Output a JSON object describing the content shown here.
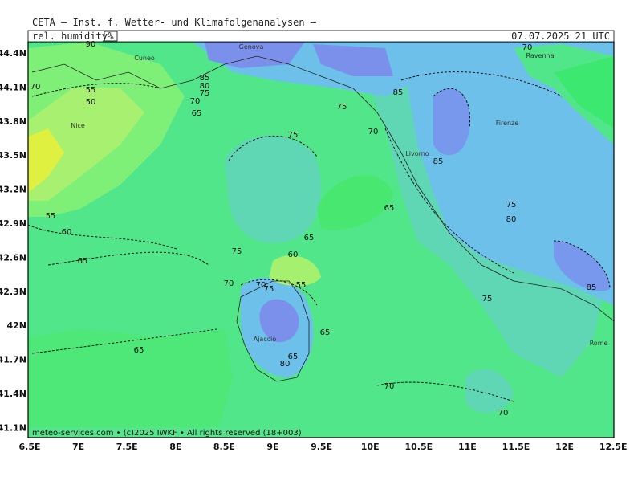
{
  "header": {
    "title": "CETA — Inst. f. Wetter- und Klimafolgenanalysen —",
    "variable": "rel. humidity",
    "unit": "%",
    "valid": "07.07.2025 21 UTC"
  },
  "axes": {
    "x_labels": [
      "6.5E",
      "7E",
      "7.5E",
      "8E",
      "8.5E",
      "9E",
      "9.5E",
      "10E",
      "10.5E",
      "11E",
      "11.5E",
      "12E",
      "12.5E"
    ],
    "y_labels": [
      "44.4N",
      "44.1N",
      "43.8N",
      "43.5N",
      "43.2N",
      "42.9N",
      "42.6N",
      "42.3N",
      "42N",
      "41.7N",
      "41.4N",
      "41.1N"
    ]
  },
  "places": [
    "Genova",
    "Cuneo",
    "Nice",
    "Livorno",
    "Firenze",
    "Ravenna",
    "Ajaccio",
    "Rome"
  ],
  "contour_labels": [
    "90",
    "70",
    "55",
    "50",
    "55",
    "60",
    "65",
    "65",
    "85",
    "80",
    "75",
    "70",
    "65",
    "75",
    "85",
    "70",
    "75",
    "85",
    "65",
    "75",
    "80",
    "65",
    "75",
    "60",
    "70",
    "70",
    "75",
    "55",
    "65",
    "65",
    "80",
    "85",
    "75",
    "70",
    "70",
    "70"
  ],
  "footer": "meteo-services.com • (c)2025 IWKF • All rights reserved (18+003)"
}
